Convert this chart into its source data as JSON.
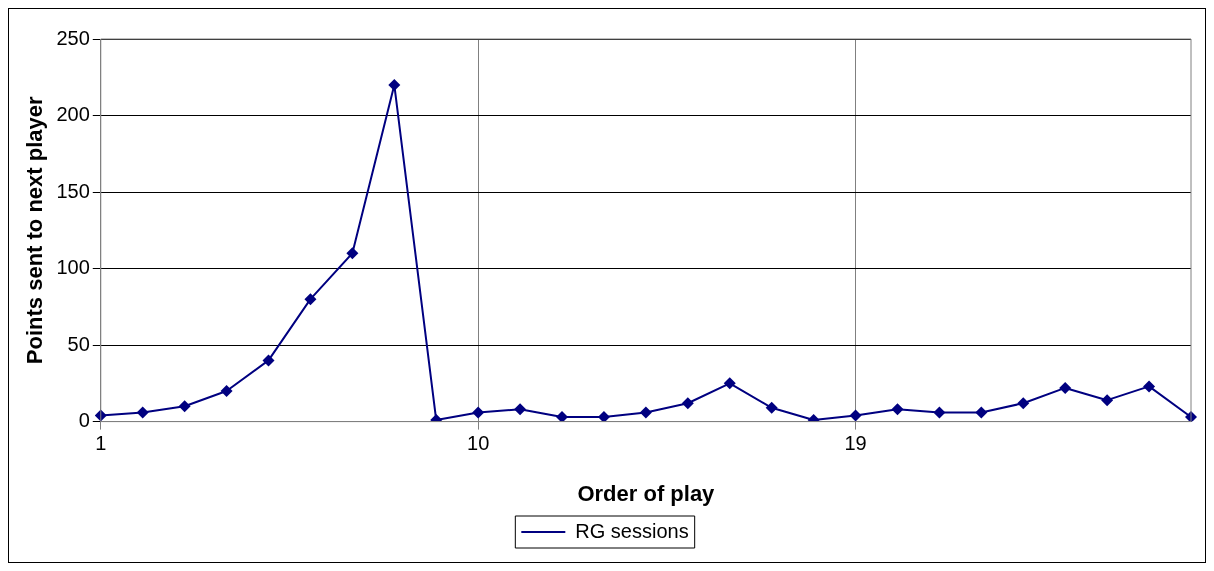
{
  "chart_data": {
    "type": "line",
    "xlabel": "Order of play",
    "ylabel": "Points sent to next player",
    "categories": [
      "1",
      null,
      null,
      null,
      null,
      null,
      null,
      null,
      null,
      "10",
      null,
      null,
      null,
      null,
      null,
      null,
      null,
      null,
      "19",
      null,
      null,
      null,
      null,
      null,
      null,
      null,
      null
    ],
    "series": [
      {
        "name": "RG sessions",
        "color": "#000080",
        "values": [
          4,
          6,
          10,
          20,
          40,
          80,
          110,
          220,
          1,
          6,
          8,
          3,
          3,
          6,
          12,
          25,
          9,
          1,
          4,
          8,
          6,
          6,
          12,
          22,
          14,
          23,
          3
        ]
      }
    ],
    "ylim": [
      0,
      250
    ],
    "yticks": [
      0,
      50,
      100,
      150,
      200,
      250
    ],
    "grid": true,
    "legend": "bottom",
    "marker": "diamond",
    "line_style": "solid"
  }
}
